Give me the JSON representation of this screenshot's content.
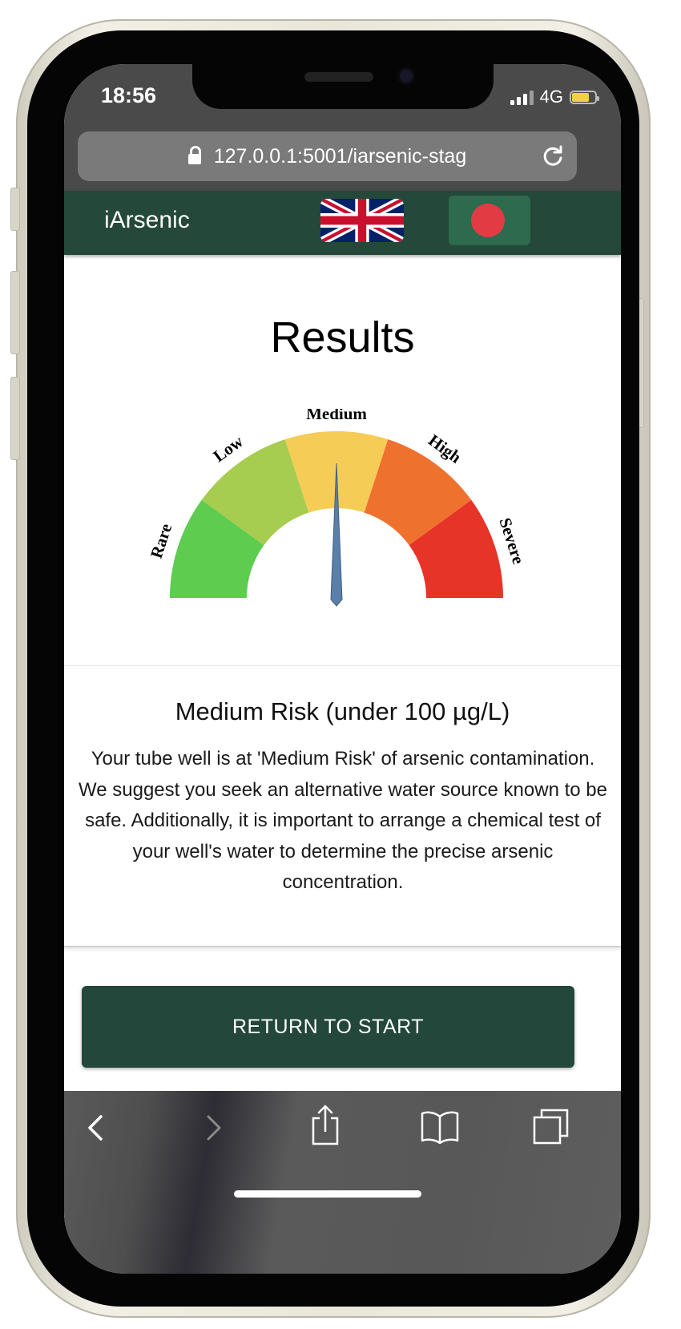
{
  "status_bar": {
    "time": "18:56",
    "network": "4G",
    "battery_level": 0.75
  },
  "browser": {
    "url": "127.0.0.1:5001/iarsenic-stag"
  },
  "navbar": {
    "brand": "iArsenic"
  },
  "page": {
    "title": "Results"
  },
  "gauge": {
    "labels": [
      "Rare",
      "Low",
      "Medium",
      "High",
      "Severe"
    ],
    "colors": [
      "#5dcc4f",
      "#a6cc50",
      "#f5cc56",
      "#ee712e",
      "#e73428"
    ],
    "needle_color": "#5a7fa8",
    "selected": "Medium"
  },
  "result": {
    "heading": "Medium Risk (under 100 µg/L)",
    "body": "Your tube well is at 'Medium Risk' of arsenic contamination. We suggest you seek an alternative water source known to be safe. Additionally, it is important to arrange a chemical test of your well's water to determine the precise arsenic concentration."
  },
  "actions": {
    "return_label": "RETURN TO START"
  },
  "toolbar": {
    "icons": [
      "back-icon",
      "forward-icon",
      "share-icon",
      "bookmarks-icon",
      "tabs-icon"
    ]
  }
}
